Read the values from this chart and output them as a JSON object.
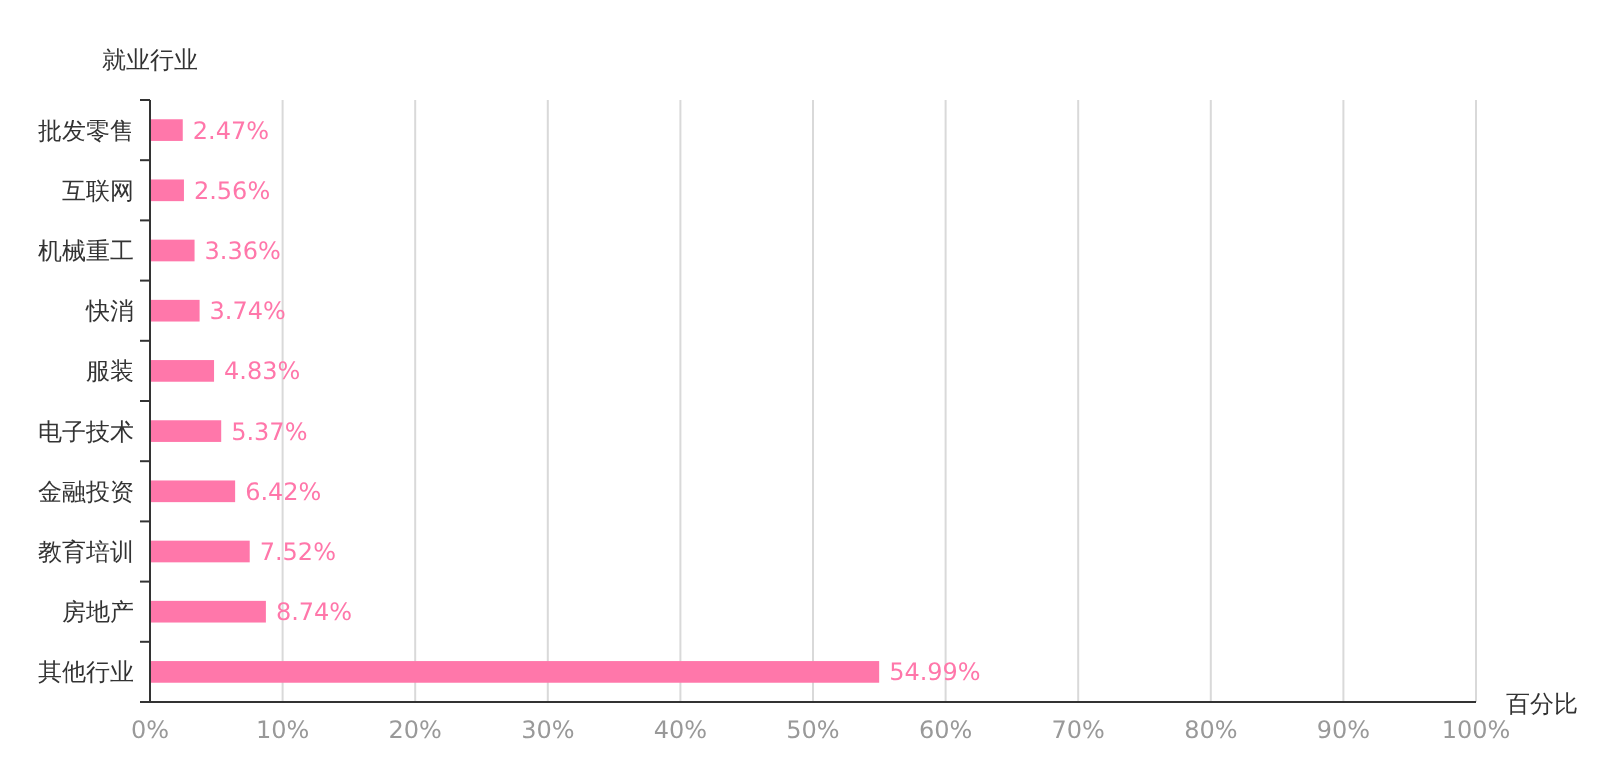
{
  "chart_data": {
    "type": "bar",
    "orientation": "horizontal",
    "xlabel": "百分比",
    "ylabel": "就业行业",
    "categories": [
      "批发零售",
      "互联网",
      "机械重工",
      "快消",
      "服装",
      "电子技术",
      "金融投资",
      "教育培训",
      "房地产",
      "其他行业"
    ],
    "values": [
      2.47,
      2.56,
      3.36,
      3.74,
      4.83,
      5.37,
      6.42,
      7.52,
      8.74,
      54.99
    ],
    "value_labels": [
      "2.47%",
      "2.56%",
      "3.36%",
      "3.74%",
      "4.83%",
      "5.37%",
      "6.42%",
      "7.52%",
      "8.74%",
      "54.99%"
    ],
    "color": "#ff77aa",
    "xlim": [
      0,
      100
    ],
    "xticks": [
      {
        "value": 0,
        "label": "0%"
      },
      {
        "value": 10,
        "label": "10%"
      },
      {
        "value": 20,
        "label": "20%"
      },
      {
        "value": 30,
        "label": "30%"
      },
      {
        "value": 40,
        "label": "40%"
      },
      {
        "value": 50,
        "label": "50%"
      },
      {
        "value": 60,
        "label": "60%"
      },
      {
        "value": 70,
        "label": "70%"
      },
      {
        "value": 80,
        "label": "80%"
      },
      {
        "value": 90,
        "label": "90%"
      },
      {
        "value": 100,
        "label": "100%"
      }
    ],
    "grid": "x"
  }
}
